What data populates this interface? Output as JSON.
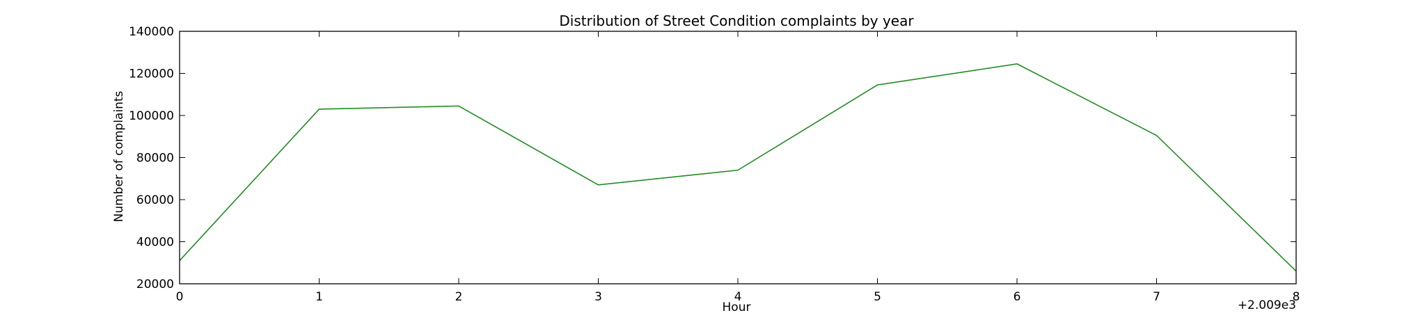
{
  "chart_data": {
    "type": "line",
    "title": "Distribution of  Street Condition complaints by year",
    "xlabel": "Hour",
    "ylabel": "Number of complaints",
    "x_offset_label": "+2.009e3",
    "x": [
      0,
      1,
      2,
      3,
      4,
      5,
      6,
      7,
      8
    ],
    "x_ticks": [
      0,
      1,
      2,
      3,
      4,
      5,
      6,
      7,
      8
    ],
    "y_ticks": [
      20000,
      40000,
      60000,
      80000,
      100000,
      120000,
      140000
    ],
    "xlim": [
      0,
      8
    ],
    "ylim": [
      20000,
      140000
    ],
    "grid": false,
    "series": [
      {
        "values": [
          31000,
          103000,
          104500,
          67000,
          74000,
          114500,
          124500,
          90500,
          26000
        ],
        "color": "#228b22"
      }
    ]
  }
}
